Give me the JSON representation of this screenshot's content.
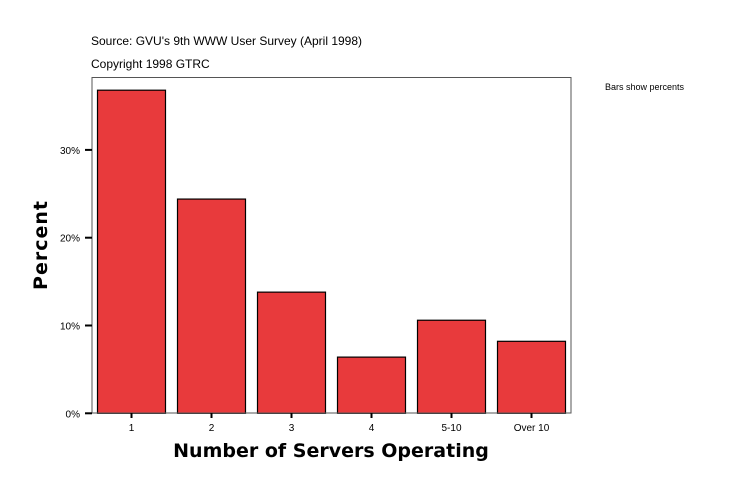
{
  "chart_data": {
    "type": "bar",
    "title": "",
    "source": "Source: GVU's 9th WWW User Survey (April 1998)",
    "copyright": "Copyright 1998 GTRC",
    "note": "Bars show percents",
    "xlabel": "Number of Servers Operating",
    "ylabel": "Percent",
    "categories": [
      "1",
      "2",
      "3",
      "4",
      "5-10",
      "Over 10"
    ],
    "values": [
      36.8,
      24.4,
      13.8,
      6.4,
      10.6,
      8.2
    ],
    "ylim": [
      0,
      38.1
    ],
    "yticks": [
      0,
      10,
      20,
      30
    ],
    "ytick_labels": [
      "0%",
      "10%",
      "20%",
      "30%"
    ],
    "grid": false,
    "legend": "none",
    "bar_color": "#e83a3c"
  }
}
